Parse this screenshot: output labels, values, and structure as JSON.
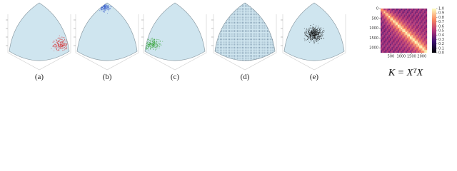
{
  "panels": [
    {
      "caption": "(a)"
    },
    {
      "caption": "(b)"
    },
    {
      "caption": "(c)"
    },
    {
      "caption": "(d)"
    },
    {
      "caption": "(e)"
    }
  ],
  "heatmap": {
    "lim": [
      0,
      2250
    ],
    "yticks": [
      0,
      500,
      1000,
      1500,
      2000
    ],
    "xticks": [
      500,
      1000,
      1500,
      2000
    ],
    "colorbar_ticks": [
      {
        "value": 0,
        "label": "0.0"
      },
      {
        "value": 0.1,
        "label": "0.1"
      },
      {
        "value": 0.2,
        "label": "0.2"
      },
      {
        "value": 0.3,
        "label": "0.3"
      },
      {
        "value": 0.4,
        "label": "0.4"
      },
      {
        "value": 0.5,
        "label": "0.5"
      },
      {
        "value": 0.6,
        "label": "0.6"
      },
      {
        "value": 0.7,
        "label": "0.7"
      },
      {
        "value": 0.8,
        "label": "0.8"
      },
      {
        "value": 0.9,
        "label": "0.9"
      },
      {
        "value": 1,
        "label": "1.0"
      }
    ],
    "equation": "K = XᵀX"
  }
}
